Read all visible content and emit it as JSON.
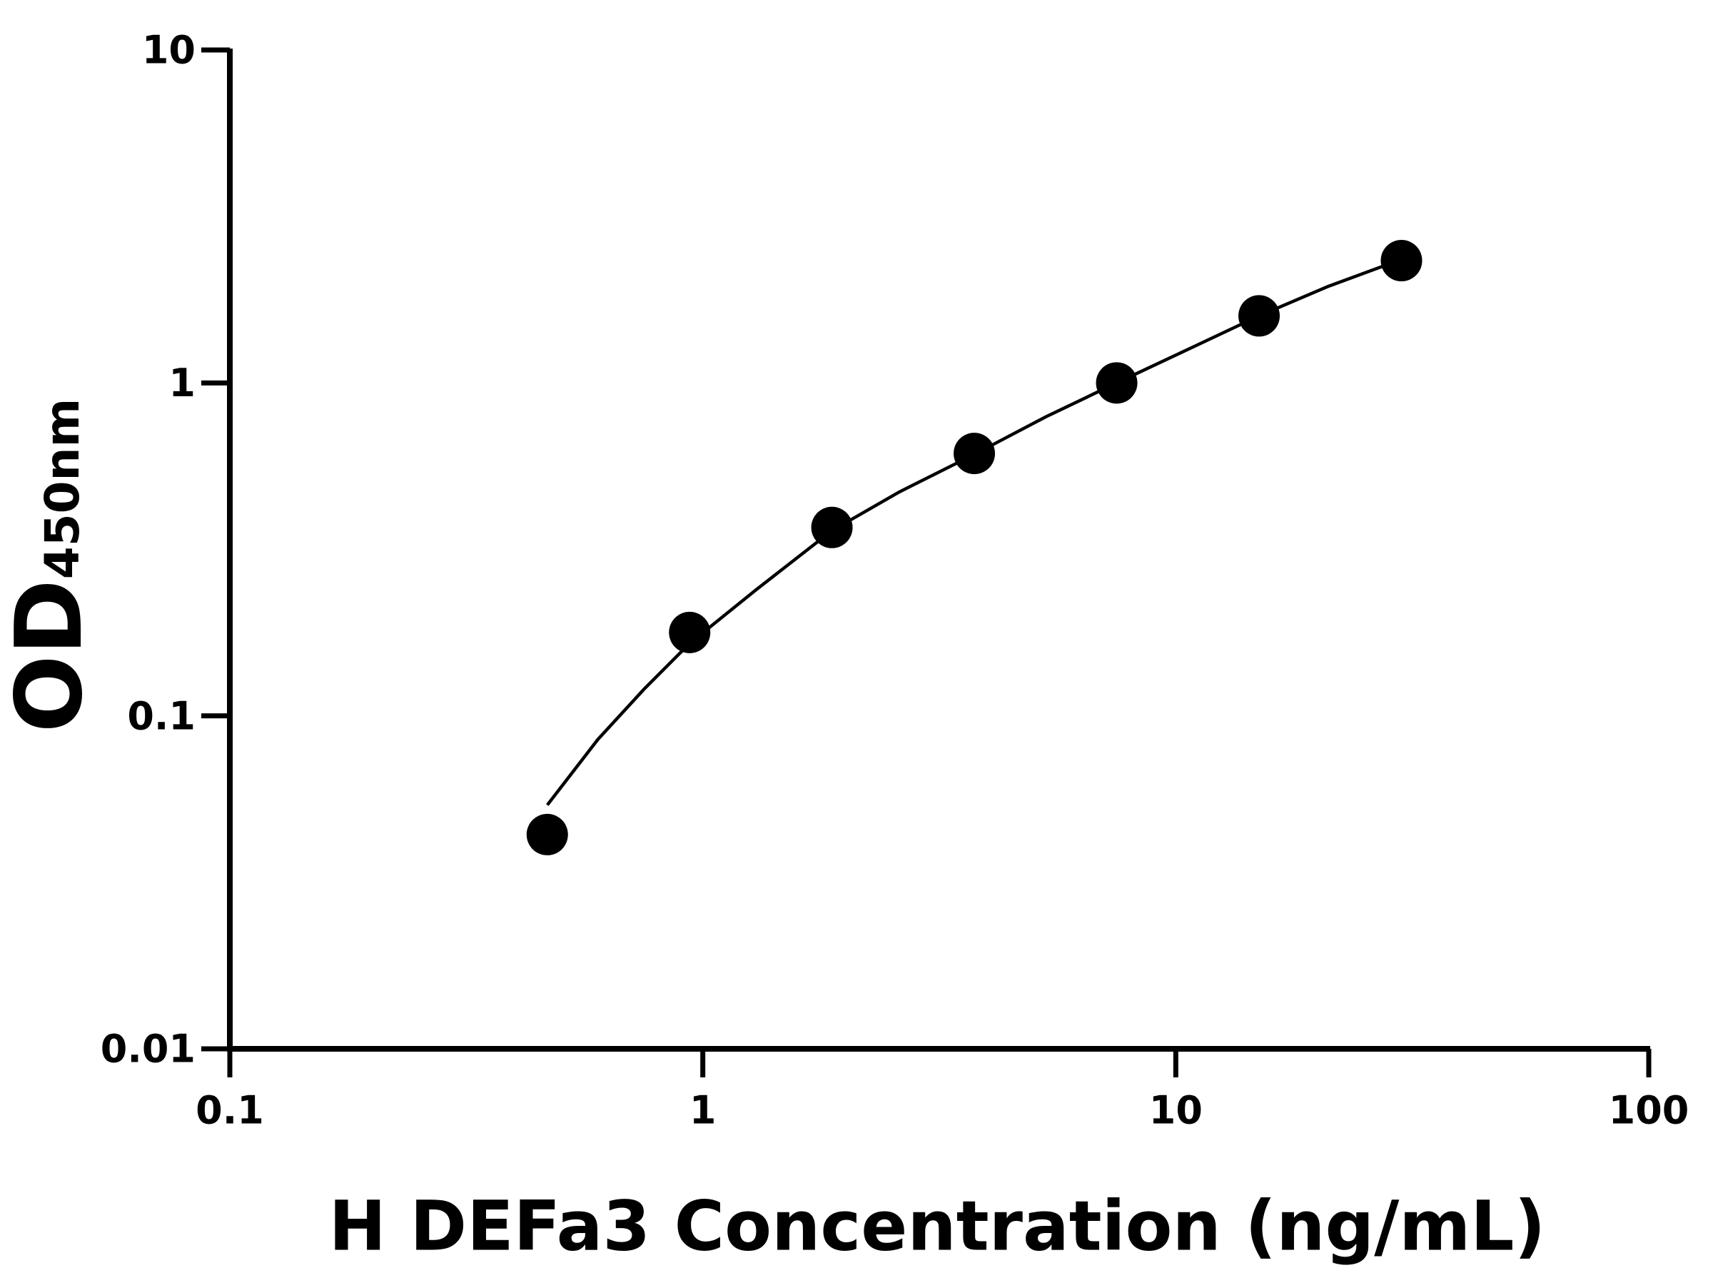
{
  "chart_data": {
    "type": "scatter",
    "x_label": "H DEFa3 Concentration (ng/mL)",
    "y_label": "OD",
    "y_label_subscript": "450nm",
    "log_x": true,
    "log_y": true,
    "xlim": [
      0.1,
      100
    ],
    "ylim": [
      0.01,
      10
    ],
    "xticks": [
      0.1,
      1,
      10,
      100
    ],
    "yticks": [
      0.01,
      0.1,
      1,
      10
    ],
    "color": "#000000",
    "x": [
      0.469,
      0.938,
      1.875,
      3.75,
      7.5,
      15,
      30
    ],
    "values": [
      0.044,
      0.178,
      0.368,
      0.614,
      1.0,
      1.59,
      2.33
    ],
    "fit": {
      "x": [
        0.469,
        0.6,
        0.75,
        0.938,
        1.3,
        1.875,
        2.6,
        3.75,
        5.3,
        7.5,
        10.6,
        15,
        21,
        30
      ],
      "values": [
        0.054,
        0.085,
        0.12,
        0.165,
        0.24,
        0.36,
        0.47,
        0.61,
        0.79,
        1.0,
        1.26,
        1.59,
        1.95,
        2.35
      ]
    }
  }
}
